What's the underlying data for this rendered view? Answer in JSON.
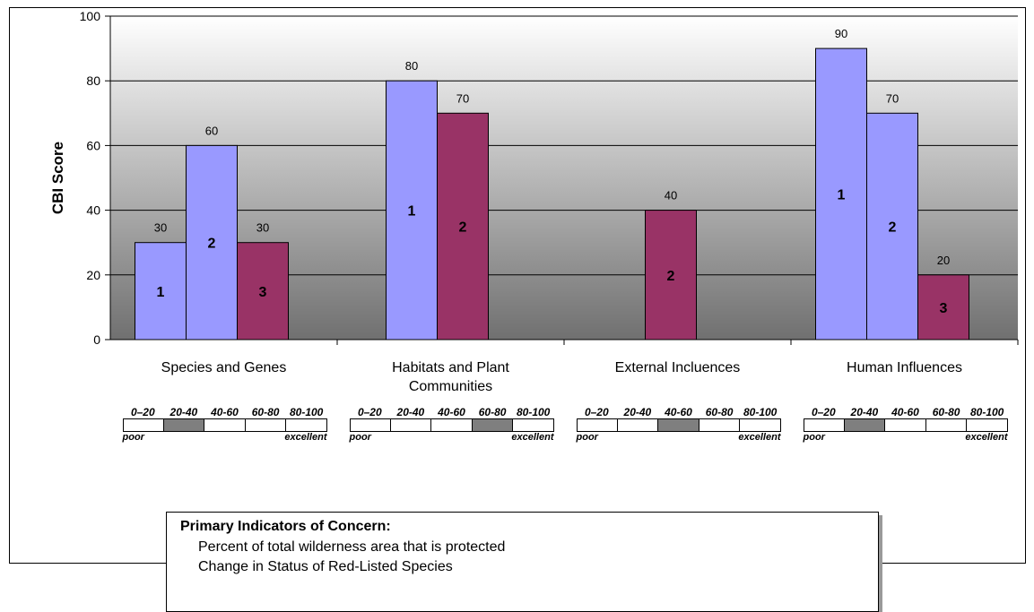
{
  "chart_data": {
    "type": "bar",
    "ylabel": "CBI Score",
    "ylim": [
      0,
      100
    ],
    "yticks": [
      0,
      20,
      40,
      60,
      80,
      100
    ],
    "grid": true,
    "colors": {
      "blue": "#9999ff",
      "maroon": "#993366",
      "bg_top": "#ffffff",
      "bg_bottom": "#707070"
    },
    "categories": [
      {
        "label_lines": [
          "Species and Genes"
        ],
        "bars": [
          {
            "value": 30,
            "color": "blue",
            "index_label": "1",
            "value_label": "30"
          },
          {
            "value": 60,
            "color": "blue",
            "index_label": "2",
            "value_label": "60"
          },
          {
            "value": 30,
            "color": "maroon",
            "index_label": "3",
            "value_label": "30"
          }
        ]
      },
      {
        "label_lines": [
          "Habitats and Plant",
          "Communities"
        ],
        "bars": [
          {
            "value": 80,
            "color": "blue",
            "index_label": "1",
            "value_label": "80"
          },
          {
            "value": 70,
            "color": "maroon",
            "index_label": "2",
            "value_label": "70"
          }
        ]
      },
      {
        "label_lines": [
          "External Incluences"
        ],
        "bars": [
          {
            "value": 40,
            "color": "maroon",
            "index_label": "2",
            "value_label": "40"
          }
        ]
      },
      {
        "label_lines": [
          "Human Influences"
        ],
        "bars": [
          {
            "value": 90,
            "color": "blue",
            "index_label": "1",
            "value_label": "90"
          },
          {
            "value": 70,
            "color": "blue",
            "index_label": "2",
            "value_label": "70"
          },
          {
            "value": 20,
            "color": "maroon",
            "index_label": "3",
            "value_label": "20"
          }
        ]
      }
    ]
  },
  "scales": {
    "ranges": [
      "0–20",
      "20-40",
      "40-60",
      "60-80",
      "80-100"
    ],
    "poor_label": "poor",
    "excellent_label": "excellent",
    "highlighted_range_index": [
      1,
      3,
      2,
      1
    ]
  },
  "concern_box": {
    "title": "Primary  Indicators of Concern:",
    "lines": [
      "Percent of total wilderness area that is protected",
      "Change in Status of Red-Listed Species"
    ]
  }
}
